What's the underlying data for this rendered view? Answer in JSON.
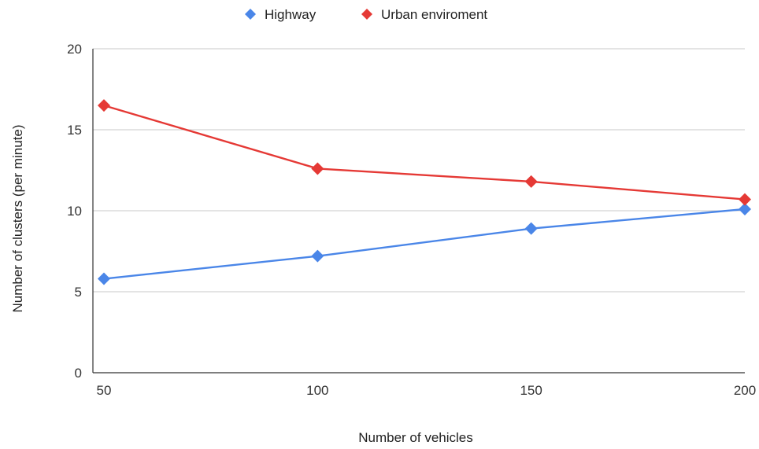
{
  "chart_data": {
    "type": "line",
    "title": "",
    "xlabel": "Number of vehicles",
    "ylabel": "Number of clusters (per minute)",
    "x": [
      50,
      100,
      150,
      200
    ],
    "x_tick_labels": [
      "50",
      "100",
      "150",
      "200"
    ],
    "ylim": [
      0,
      20
    ],
    "y_ticks": [
      0,
      5,
      10,
      15,
      20
    ],
    "y_tick_labels": [
      "0",
      "5",
      "10",
      "15",
      "20"
    ],
    "grid": true,
    "legend_position": "top",
    "series": [
      {
        "name": "Highway",
        "color": "#4a86e8",
        "marker": "diamond",
        "values": [
          5.8,
          7.2,
          8.9,
          10.1
        ]
      },
      {
        "name": "Urban enviroment",
        "color": "#e53935",
        "marker": "diamond",
        "values": [
          16.5,
          12.6,
          11.8,
          10.7
        ]
      }
    ]
  }
}
